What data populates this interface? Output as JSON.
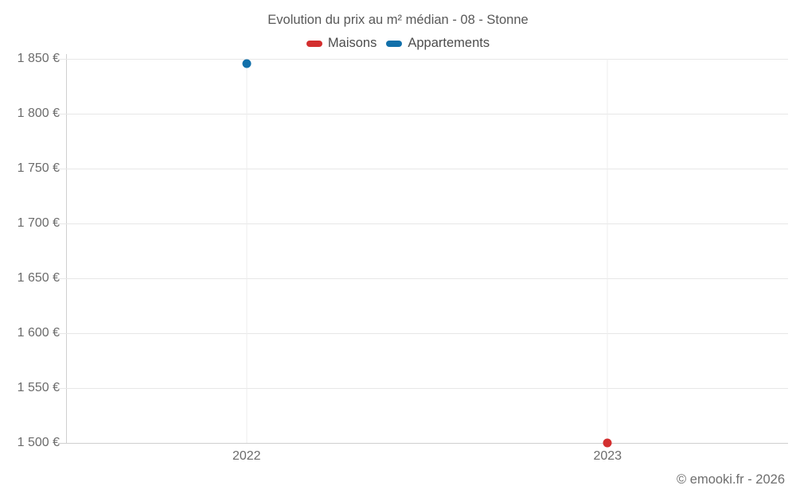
{
  "chart_data": {
    "type": "scatter",
    "title": "Evolution du prix au m² médian - 08 - Stonne",
    "categories": [
      "2022",
      "2023"
    ],
    "series": [
      {
        "name": "Maisons",
        "color": "#d32f2f",
        "values": [
          null,
          1500
        ]
      },
      {
        "name": "Appartements",
        "color": "#1270aa",
        "values": [
          1846,
          null
        ]
      }
    ],
    "ylim": [
      1500,
      1850
    ],
    "ytick_step": 50,
    "yticks": [
      {
        "value": 1850,
        "label": "1 850 €"
      },
      {
        "value": 1800,
        "label": "1 800 €"
      },
      {
        "value": 1750,
        "label": "1 750 €"
      },
      {
        "value": 1700,
        "label": "1 700 €"
      },
      {
        "value": 1650,
        "label": "1 650 €"
      },
      {
        "value": 1600,
        "label": "1 600 €"
      },
      {
        "value": 1550,
        "label": "1 550 €"
      },
      {
        "value": 1500,
        "label": "1 500 €"
      }
    ],
    "grid": true,
    "legend_position": "top",
    "colors": {
      "grid": "#e7e7e7",
      "axis": "#cfcfcf",
      "title_text": "#595959",
      "tick_text": "#6b6b6b",
      "legend_text": "#4d4d4d"
    }
  },
  "footer": {
    "attribution": "© emooki.fr - 2026"
  }
}
